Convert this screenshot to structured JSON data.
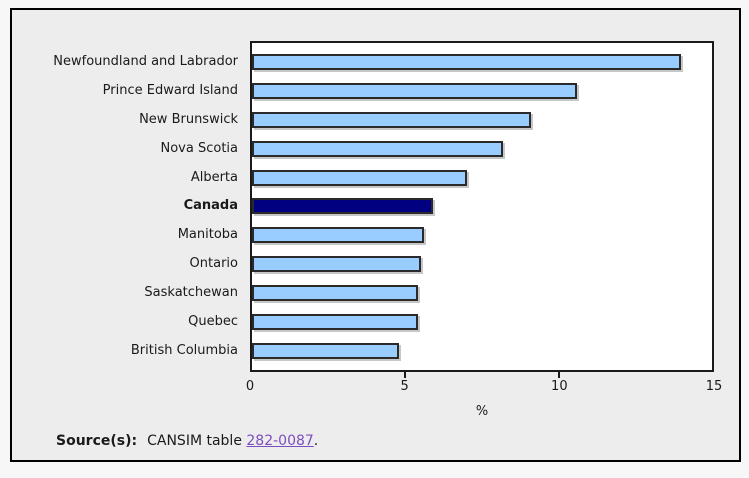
{
  "window": {
    "background": "#f7f7f7",
    "panel_background": "#ededed",
    "panel_border": "#000000"
  },
  "chart_data": {
    "type": "bar",
    "orientation": "horizontal",
    "title": "",
    "categories": [
      "Newfoundland and Labrador",
      "Prince Edward Island",
      "New Brunswick",
      "Nova Scotia",
      "Alberta",
      "Canada",
      "Manitoba",
      "Ontario",
      "Saskatchewan",
      "Quebec",
      "British Columbia"
    ],
    "values": [
      14.0,
      10.6,
      9.1,
      8.2,
      7.0,
      5.9,
      5.6,
      5.5,
      5.4,
      5.4,
      4.8
    ],
    "highlight_category": "Canada",
    "xlabel": "%",
    "ylabel": "",
    "xlim": [
      0,
      15
    ],
    "xticks": [
      0,
      5,
      10,
      15
    ],
    "tick_marks": [
      5,
      10
    ],
    "grid": false,
    "legend_position": "none",
    "colors": {
      "bar": "#99ccff",
      "highlight_bar": "#000080",
      "bar_border": "#2a2a2a",
      "plot_background": "#ffffff",
      "plot_border": "#1a1a1a"
    }
  },
  "source": {
    "label": "Source(s):",
    "text": "CANSIM table ",
    "link": "282-0087",
    "suffix": ".",
    "link_color": "#7d4ec0"
  }
}
